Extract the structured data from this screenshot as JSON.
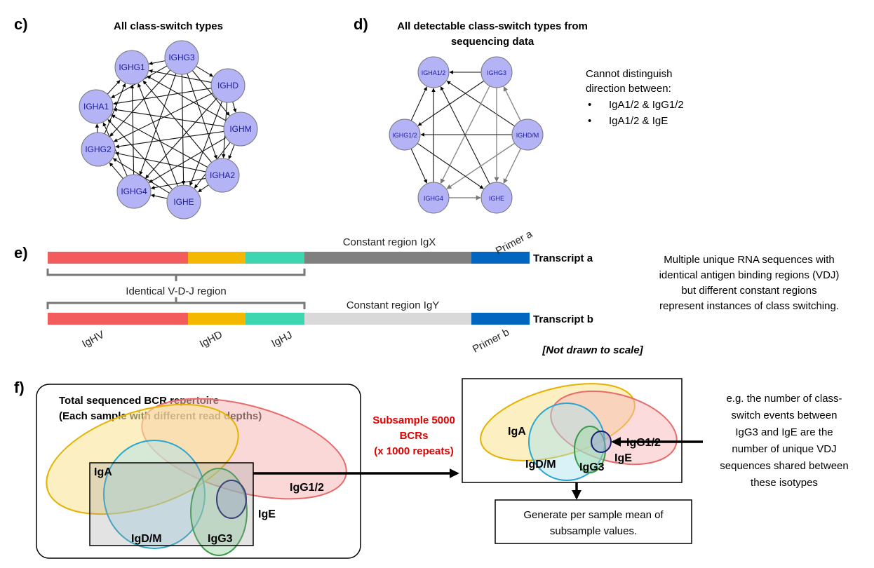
{
  "panels": {
    "c": "c)",
    "d": "d)",
    "e": "e)",
    "f": "f)"
  },
  "panel_c": {
    "title": "All class-switch types",
    "nodes": [
      "IGHG3",
      "IGHD",
      "IGHM",
      "IGHA2",
      "IGHE",
      "IGHG4",
      "IGHG2",
      "IGHA1",
      "IGHG1"
    ]
  },
  "panel_d": {
    "title_line1": "All detectable class-switch types from",
    "title_line2": "sequencing data",
    "nodes": [
      "IGHA1/2",
      "IGHG3",
      "IGHG1/2",
      "IGHD/M",
      "IGHG4",
      "IGHE"
    ],
    "note": {
      "line1": "Cannot distinguish",
      "line2": "direction between:",
      "bullet1": "IgA1/2 & IgG1/2",
      "bullet2": "IgA1/2 & IgE"
    }
  },
  "panel_e": {
    "constant_a": "Constant region IgX",
    "constant_b": "Constant region IgY",
    "primer_a": "Primer a",
    "primer_b": "Primer b",
    "transcript_a": "Transcript a",
    "transcript_b": "Transcript b",
    "vdj_label": "Identical V-D-J region",
    "seg_v": "IgHV",
    "seg_d": "IgHD",
    "seg_j": "IgHJ",
    "not_to_scale": "[Not drawn to scale]",
    "explanation": [
      "Multiple unique RNA sequences with",
      "identical antigen binding regions (VDJ)",
      "but different constant regions",
      "represent instances of class switching."
    ]
  },
  "panel_f": {
    "box_title_1": "Total sequenced BCR repertoire",
    "box_title_2": "(Each sample with different read depths)",
    "subsample": [
      "Subsample 5000",
      "BCRs",
      "(x 1000 repeats)"
    ],
    "isotypes": {
      "iga": "IgA",
      "igg12": "IgG1/2",
      "igdm": "IgD/M",
      "igg3": "IgG3",
      "ige": "IgE"
    },
    "result_box": [
      "Generate per sample mean of",
      "subsample values."
    ],
    "example": [
      "e.g. the number of class-",
      "switch events between",
      "IgG3 and IgE are the",
      "number of unique VDJ",
      "sequences shared between",
      "these isotypes"
    ]
  },
  "colors": {
    "node_fill": "#b3b3f5",
    "v_segment": "#f25c5c",
    "d_segment": "#f5b800",
    "j_segment": "#3dd6b0",
    "constant_x": "#808080",
    "constant_y": "#d9d9d9",
    "primer": "#0066bf",
    "subsample_text": "#e00000"
  }
}
